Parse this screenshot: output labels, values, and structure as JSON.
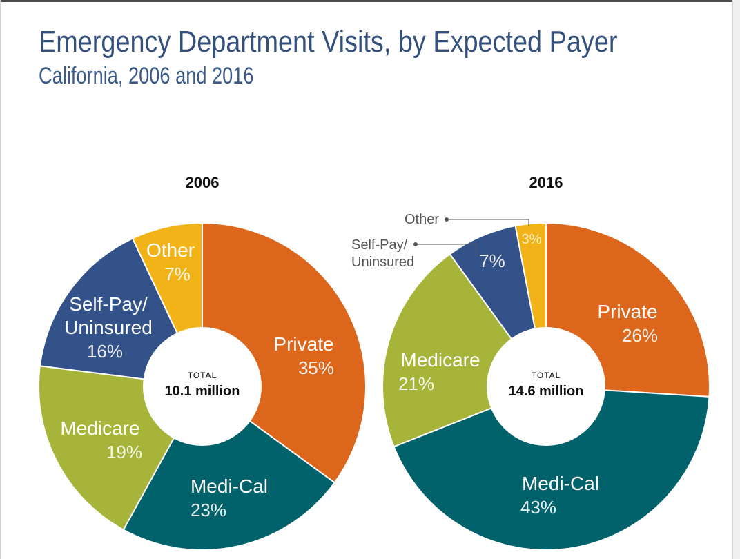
{
  "header": {
    "title": "Emergency Department Visits, by Expected Payer",
    "subtitle": "California, 2006 and 2016"
  },
  "colors": {
    "Private": "#dc661c",
    "Medi-Cal": "#02626b",
    "Medicare": "#a6b53a",
    "Self-Pay/Uninsured": "#34528a",
    "Other": "#f2b318"
  },
  "chart_data": [
    {
      "type": "pie",
      "variant": "donut",
      "title": "2006",
      "center_label": "TOTAL",
      "center_value": "10.1 million",
      "slices": [
        {
          "name": "Private",
          "value": 35,
          "display": [
            "Private"
          ],
          "label": "35%"
        },
        {
          "name": "Medi-Cal",
          "value": 23,
          "display": [
            "Medi-Cal"
          ],
          "label": "23%"
        },
        {
          "name": "Medicare",
          "value": 19,
          "display": [
            "Medicare"
          ],
          "label": "19%"
        },
        {
          "name": "Self-Pay/Uninsured",
          "value": 16,
          "display": [
            "Self-Pay/",
            "Uninsured"
          ],
          "label": "16%"
        },
        {
          "name": "Other",
          "value": 7,
          "display": [
            "Other"
          ],
          "label": "7%"
        }
      ]
    },
    {
      "type": "pie",
      "variant": "donut",
      "title": "2016",
      "center_label": "TOTAL",
      "center_value": "14.6 million",
      "slices": [
        {
          "name": "Private",
          "value": 26,
          "display": [
            "Private"
          ],
          "label": "26%"
        },
        {
          "name": "Medi-Cal",
          "value": 43,
          "display": [
            "Medi-Cal"
          ],
          "label": "43%"
        },
        {
          "name": "Medicare",
          "value": 21,
          "display": [
            "Medicare"
          ],
          "label": "21%"
        },
        {
          "name": "Self-Pay/Uninsured",
          "value": 7,
          "display": [],
          "callout": [
            "Self-Pay/",
            "Uninsured"
          ],
          "label": "7%"
        },
        {
          "name": "Other",
          "value": 3,
          "display": [],
          "callout": [
            "Other"
          ],
          "label": "3%"
        }
      ]
    }
  ]
}
